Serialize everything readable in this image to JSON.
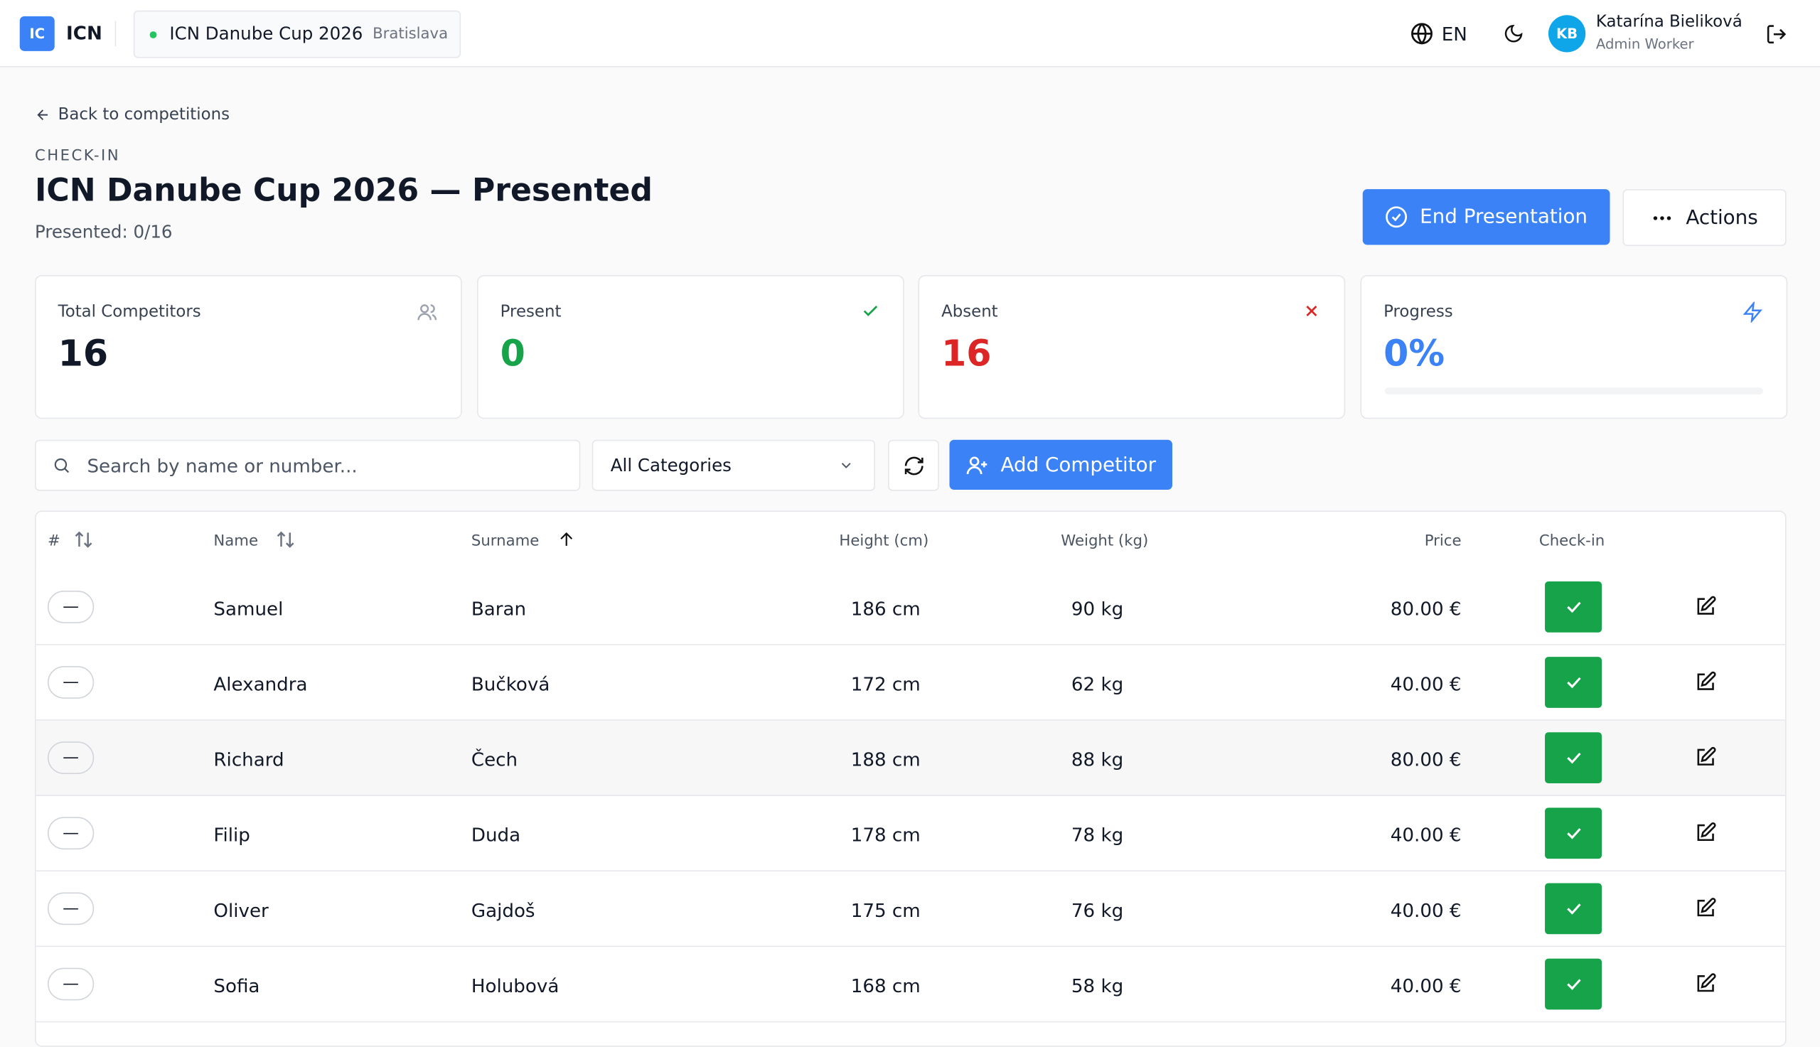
{
  "header": {
    "logo_initials": "IC",
    "brand": "ICN",
    "event_name": "ICN Danube Cup 2026",
    "event_city": "Bratislava",
    "language": "EN",
    "user_initials": "KB",
    "user_name": "Katarína Bieliková",
    "user_role": "Admin Worker"
  },
  "page": {
    "back_link": "Back to competitions",
    "eyebrow": "CHECK-IN",
    "title": "ICN Danube Cup 2026 — Presented",
    "subtitle": "Presented: 0/16",
    "primary_button": "End Presentation",
    "secondary_button": "Actions"
  },
  "stats": [
    {
      "label": "Total Competitors",
      "value": "16"
    },
    {
      "label": "Present",
      "value": "0"
    },
    {
      "label": "Absent",
      "value": "16"
    },
    {
      "label": "Progress",
      "value": "0%"
    }
  ],
  "toolbar": {
    "search_placeholder": "Search by name or number...",
    "category_select": "All Categories",
    "add_button": "Add Competitor"
  },
  "table": {
    "columns": [
      "#",
      "Name",
      "Surname",
      "Height (cm)",
      "Weight (kg)",
      "Price",
      "Check-in"
    ],
    "rows": [
      [
        "—",
        "Samuel",
        "Baran",
        "186 cm",
        "90 kg",
        "80.00 €"
      ],
      [
        "—",
        "Alexandra",
        "Bučková",
        "172 cm",
        "62 kg",
        "40.00 €"
      ],
      [
        "—",
        "Richard",
        "Čech",
        "188 cm",
        "88 kg",
        "80.00 €"
      ],
      [
        "—",
        "Filip",
        "Duda",
        "178 cm",
        "78 kg",
        "40.00 €"
      ],
      [
        "—",
        "Oliver",
        "Gajdoš",
        "175 cm",
        "76 kg",
        "40.00 €"
      ],
      [
        "—",
        "Sofia",
        "Holubová",
        "168 cm",
        "58 kg",
        "40.00 €"
      ]
    ]
  }
}
